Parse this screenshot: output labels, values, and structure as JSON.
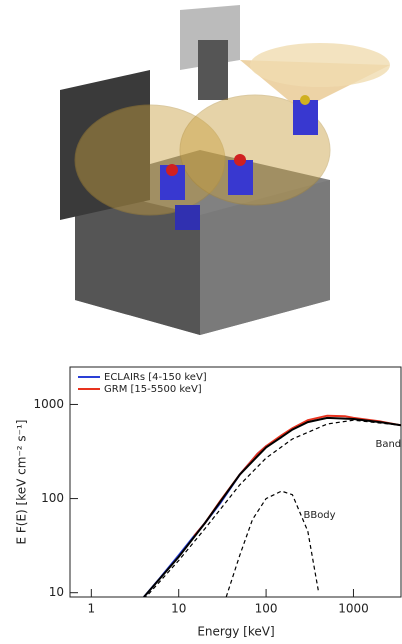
{
  "chart_data": {
    "type": "line",
    "xlabel": "Energy [keV]",
    "ylabel": "E F(E) [keV cm⁻² s⁻¹]",
    "log_x": true,
    "log_y": true,
    "xlim": [
      0.57,
      3500
    ],
    "xticks": [
      1,
      10,
      100,
      1000
    ],
    "ylim": [
      9,
      2500
    ],
    "yticks": [
      10,
      100,
      1000
    ],
    "series": [
      {
        "name": "ECLAIRs [4-150 keV]",
        "color": "#2a3fd6",
        "legend": true,
        "x": [
          4,
          6,
          10,
          15,
          20,
          30,
          50,
          80,
          100,
          150
        ],
        "values": [
          9,
          14,
          25,
          40,
          55,
          90,
          180,
          300,
          360,
          450
        ]
      },
      {
        "name": "GRM [15-5500 keV]",
        "color": "#e8321e",
        "legend": true,
        "x": [
          15,
          20,
          30,
          50,
          80,
          100,
          150,
          200,
          300,
          500,
          800,
          1000,
          2000,
          3500
        ],
        "values": [
          40,
          55,
          95,
          180,
          300,
          360,
          470,
          560,
          680,
          760,
          750,
          720,
          660,
          600
        ]
      },
      {
        "color": "#000000",
        "x": [
          4,
          10,
          20,
          50,
          100,
          150,
          200,
          300,
          500,
          1000,
          2000,
          3500
        ],
        "values": [
          9,
          24,
          55,
          180,
          350,
          450,
          540,
          650,
          720,
          700,
          650,
          600
        ]
      },
      {
        "name": "Band",
        "color": "#000000",
        "dash": true,
        "x": [
          4,
          10,
          20,
          50,
          100,
          200,
          500,
          1000,
          3500
        ],
        "values": [
          8.5,
          22,
          48,
          140,
          270,
          430,
          620,
          680,
          600
        ]
      },
      {
        "name": "BBody",
        "color": "#000000",
        "dash": true,
        "x": [
          35,
          50,
          70,
          100,
          150,
          200,
          300,
          400
        ],
        "values": [
          9,
          25,
          60,
          100,
          120,
          110,
          45,
          10
        ]
      }
    ]
  }
}
